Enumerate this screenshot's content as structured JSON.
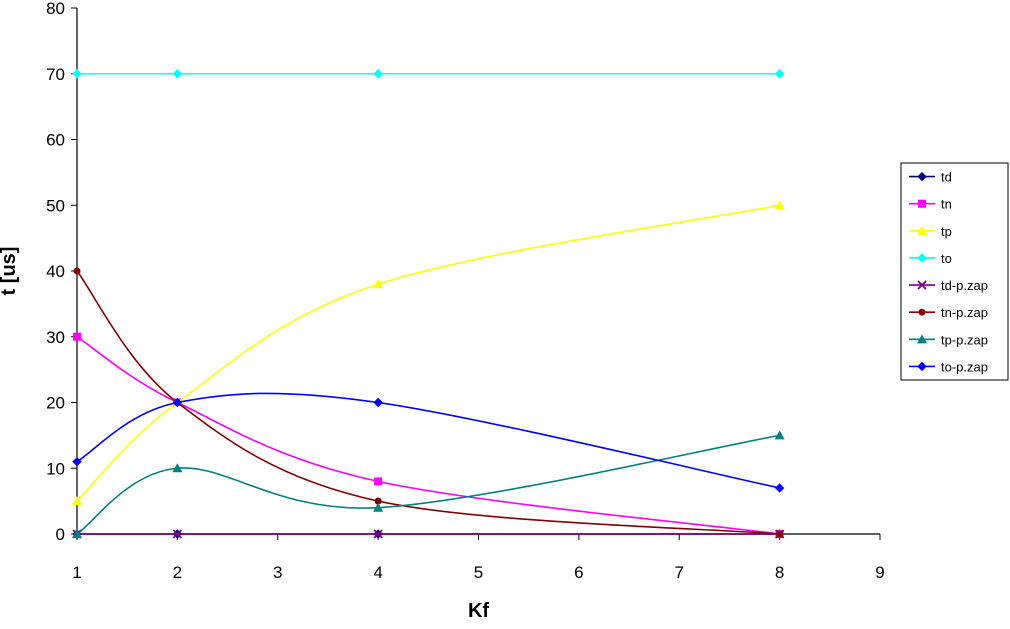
{
  "chart_data": {
    "type": "line",
    "xlabel": "Kf",
    "ylabel": "t [us]",
    "xlim": [
      1,
      9
    ],
    "ylim": [
      0,
      80
    ],
    "x_ticks": [
      "1",
      "2",
      "3",
      "4",
      "5",
      "6",
      "7",
      "8",
      "9"
    ],
    "y_ticks": [
      "0",
      "10",
      "20",
      "30",
      "40",
      "50",
      "60",
      "70",
      "80"
    ],
    "grid": false,
    "smoothed": true,
    "legend_position": "right",
    "x": [
      1,
      2,
      4,
      8
    ],
    "series": [
      {
        "name": "td",
        "color": "#000080",
        "marker": "diamond",
        "values": [
          0,
          0,
          0,
          0
        ]
      },
      {
        "name": "tn",
        "color": "#ff00ff",
        "marker": "square",
        "values": [
          30,
          20,
          8,
          0
        ]
      },
      {
        "name": "tp",
        "color": "#ffff00",
        "marker": "triangle",
        "values": [
          5,
          20,
          38,
          50
        ]
      },
      {
        "name": "to",
        "color": "#00ffff",
        "marker": "diamond",
        "values": [
          70,
          70,
          70,
          70
        ]
      },
      {
        "name": "td-p.zap",
        "color": "#800080",
        "marker": "x",
        "values": [
          0,
          0,
          0,
          0
        ]
      },
      {
        "name": "tn-p.zap",
        "color": "#800000",
        "marker": "circle",
        "values": [
          40,
          20,
          5,
          0
        ]
      },
      {
        "name": "tp-p.zap",
        "color": "#008080",
        "marker": "triangle",
        "values": [
          0,
          10,
          4,
          15
        ]
      },
      {
        "name": "to-p.zap",
        "color": "#0000ff",
        "marker": "diamond",
        "values": [
          11,
          20,
          20,
          7
        ]
      }
    ]
  }
}
